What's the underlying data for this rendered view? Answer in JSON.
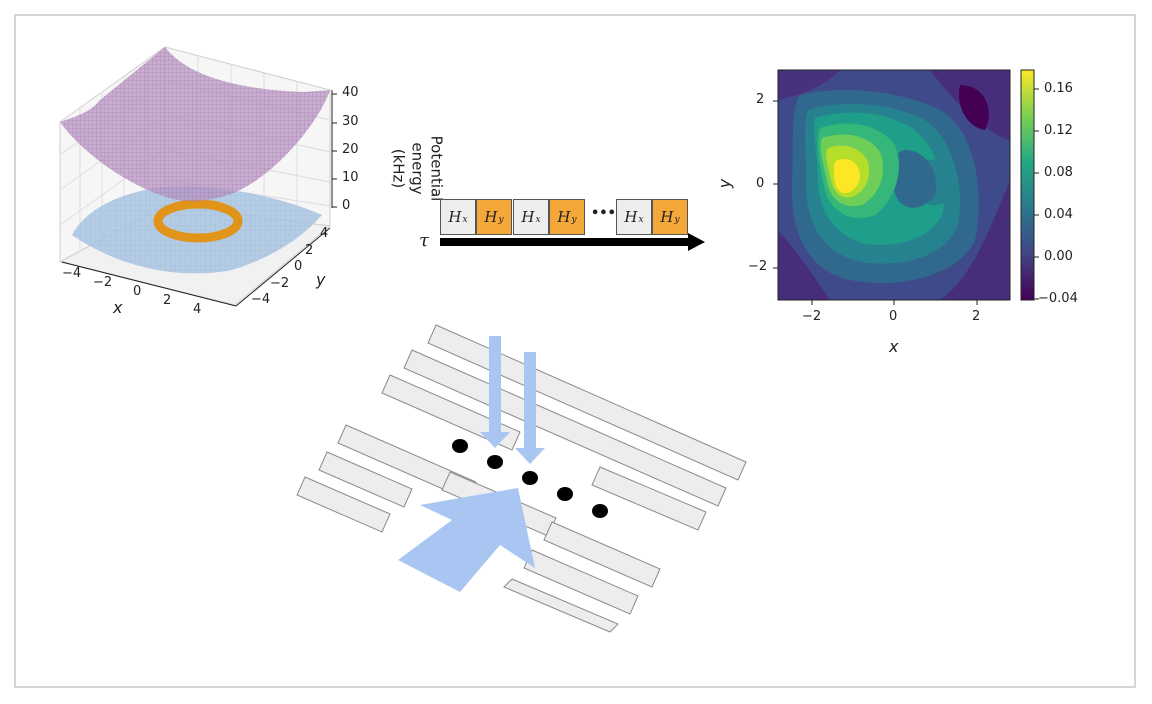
{
  "surface_plot": {
    "z_axis_title_line1": "Potential energy",
    "z_axis_title_line2": "(kHz)",
    "z_ticks": [
      "40",
      "30",
      "20",
      "10",
      "0"
    ],
    "x_label": "x",
    "y_label": "y",
    "x_ticks": [
      "−4",
      "−2",
      "0",
      "2",
      "4"
    ],
    "y_ticks": [
      "4",
      "2",
      "0",
      "−2",
      "−4"
    ],
    "colors": {
      "upper_surface": "#b894c4",
      "lower_surface": "#a9c4e2",
      "ring": "#e0951a"
    }
  },
  "sequence": {
    "tau_label": "τ",
    "boxes": [
      {
        "base": "H",
        "sub": "x",
        "color": "#eeeeee"
      },
      {
        "base": "H",
        "sub": "y",
        "color": "#f5a83a"
      },
      {
        "base": "H",
        "sub": "x",
        "color": "#eeeeee"
      },
      {
        "base": "H",
        "sub": "y",
        "color": "#f5a83a"
      },
      {
        "base": "H",
        "sub": "x",
        "color": "#eeeeee"
      },
      {
        "base": "H",
        "sub": "y",
        "color": "#f5a83a"
      }
    ],
    "ellipsis": "•••"
  },
  "density_plot": {
    "x_label": "x",
    "y_label": "y",
    "x_ticks": [
      "−2",
      "0",
      "2"
    ],
    "y_ticks": [
      "2",
      "0",
      "−2"
    ],
    "colorbar_ticks": [
      "0.16",
      "0.12",
      "0.08",
      "0.04",
      "0.00",
      "−0.04"
    ],
    "colormap": "viridis"
  },
  "trap_diagram": {
    "electrode_color": "#ededed",
    "beam_color": "#a9c6f2",
    "ion_count": 5
  }
}
